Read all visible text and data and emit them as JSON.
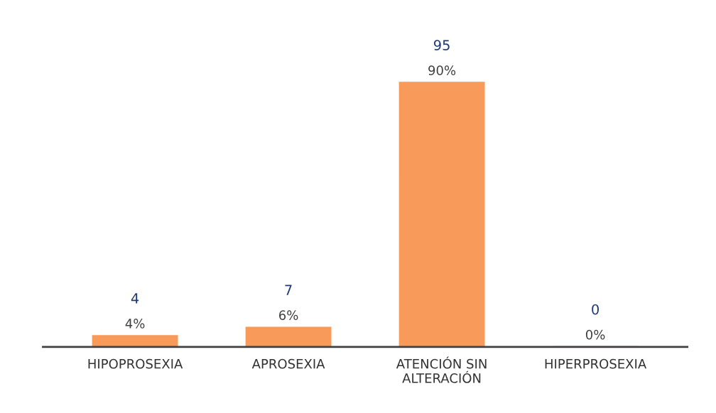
{
  "chart_data": {
    "type": "bar",
    "categories": [
      "HIPOPROSEXIA",
      "APROSEXIA",
      "ATENCIÓN SIN\nALTERACIÓN",
      "HIPERPROSEXIA"
    ],
    "values": [
      4,
      7,
      95,
      0
    ],
    "color": "#f79a5a",
    "data_labels": true,
    "annotations": [
      "4%",
      "6%",
      "90%",
      "0%"
    ],
    "grid": false,
    "legend": false
  }
}
